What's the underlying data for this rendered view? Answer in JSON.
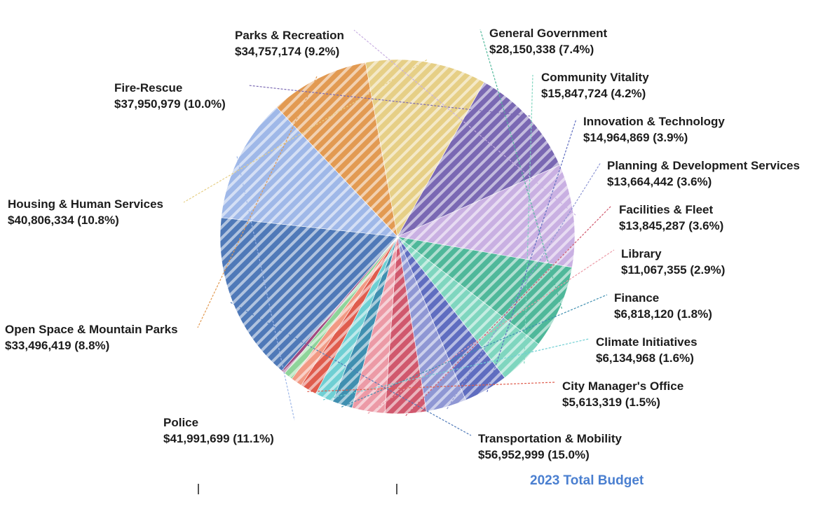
{
  "chart_data": {
    "type": "pie",
    "title": "2023 Total Budget",
    "slices": [
      {
        "name": "General Government",
        "value": 28150338,
        "value_label": "$28,150,338 (7.4%)",
        "color": "#4fb89a"
      },
      {
        "name": "Community Vitality",
        "value": 15847724,
        "value_label": "$15,847,724 (4.2%)",
        "color": "#7fd6bf"
      },
      {
        "name": "Innovation & Technology",
        "value": 14964869,
        "value_label": "$14,964,869 (3.9%)",
        "color": "#5f6dc0"
      },
      {
        "name": "Planning & Development Services",
        "value": 13664442,
        "value_label": "$13,664,442 (3.6%)",
        "color": "#8f97d4"
      },
      {
        "name": "Facilities & Fleet",
        "value": 13845287,
        "value_label": "$13,845,287 (3.6%)",
        "color": "#d0586d"
      },
      {
        "name": "Library",
        "value": 11067355,
        "value_label": "$11,067,355 (2.9%)",
        "color": "#ec9aa6"
      },
      {
        "name": "Finance",
        "value": 6818120,
        "value_label": "$6,818,120 (1.8%)",
        "color": "#3f8fb0"
      },
      {
        "name": "Climate Initiatives",
        "value": 6134968,
        "value_label": "$6,134,968 (1.6%)",
        "color": "#6fcfd3"
      },
      {
        "name": "City Manager's Office",
        "value": 5613319,
        "value_label": "$5,613,319 (1.5%)",
        "color": "#df5c4d"
      },
      {
        "name": "",
        "value": 3800000,
        "value_label": "",
        "color": "#f19a84"
      },
      {
        "name": "",
        "value": 3000000,
        "value_label": "",
        "color": "#8ed49a"
      },
      {
        "name": "",
        "value": 1300000,
        "value_label": "",
        "color": "#a04a80"
      },
      {
        "name": "Transportation & Mobility",
        "value": 56952999,
        "value_label": "$56,952,999 (15.0%)",
        "color": "#4f79b8"
      },
      {
        "name": "Police",
        "value": 41991699,
        "value_label": "$41,991,699 (11.1%)",
        "color": "#9fb8e8"
      },
      {
        "name": "Open Space & Mountain Parks",
        "value": 33496419,
        "value_label": "$33,496,419 (8.8%)",
        "color": "#e29a52"
      },
      {
        "name": "Housing & Human Services",
        "value": 40806334,
        "value_label": "$40,806,334 (10.8%)",
        "color": "#e6cf86"
      },
      {
        "name": "Fire-Rescue",
        "value": 37950979,
        "value_label": "$37,950,979 (10.0%)",
        "color": "#7a68b3"
      },
      {
        "name": "Parks & Recreation",
        "value": 34757174,
        "value_label": "$34,757,174 (9.2%)",
        "color": "#c9b0e2"
      }
    ]
  }
}
